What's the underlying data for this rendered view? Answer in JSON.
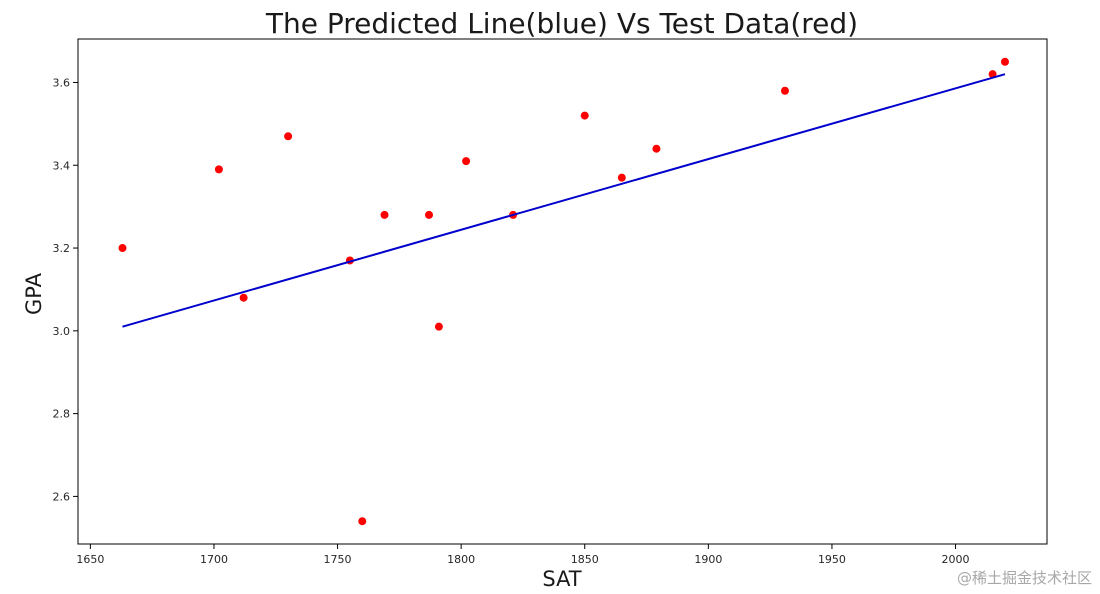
{
  "chart_data": {
    "type": "scatter",
    "title": "The Predicted Line(blue) Vs Test Data(red)",
    "xlabel": "SAT",
    "ylabel": "GPA",
    "xlim": [
      1645,
      2037
    ],
    "ylim": [
      2.485,
      3.705
    ],
    "xticks": [
      1650,
      1700,
      1750,
      1800,
      1850,
      1900,
      1950,
      2000
    ],
    "yticks": [
      2.6,
      2.8,
      3.0,
      3.2,
      3.4,
      3.6
    ],
    "ytick_labels": [
      "2.6",
      "2.8",
      "3.0",
      "3.2",
      "3.4",
      "3.6"
    ],
    "grid": false,
    "series": [
      {
        "type": "scatter",
        "color": "#ff0000",
        "x": [
          1663,
          1702,
          1712,
          1730,
          1755,
          1760,
          1769,
          1787,
          1791,
          1802,
          1821,
          1850,
          1865,
          1879,
          1931,
          2015,
          2020
        ],
        "y": [
          3.2,
          3.39,
          3.08,
          3.47,
          3.17,
          2.54,
          3.28,
          3.28,
          3.01,
          3.41,
          3.28,
          3.52,
          3.37,
          3.44,
          3.58,
          3.62,
          3.65
        ]
      },
      {
        "type": "line",
        "color": "#0000cc",
        "x": [
          1663,
          2020
        ],
        "y": [
          3.01,
          3.62
        ]
      }
    ]
  },
  "watermark": "@稀土掘金技术社区"
}
